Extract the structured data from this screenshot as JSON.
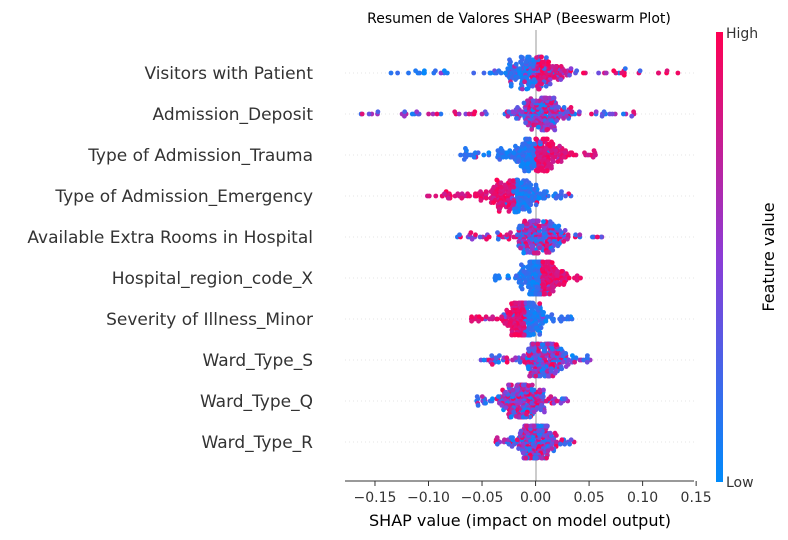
{
  "chart_data": {
    "type": "scatter",
    "subtype": "beeswarm",
    "title": "Resumen de Valores SHAP (Beeswarm Plot)",
    "xlabel": "SHAP value (impact on model output)",
    "ylabel": "",
    "xlim": [
      -0.178,
      0.148
    ],
    "xticks": [
      -0.15,
      -0.1,
      -0.05,
      0.0,
      0.05,
      0.1,
      0.15
    ],
    "xtick_labels": [
      "−0.15",
      "−0.10",
      "−0.05",
      "0.00",
      "0.05",
      "0.10",
      "0.15"
    ],
    "grid": false,
    "colorbar": {
      "label": "Feature value",
      "high_label": "High",
      "low_label": "Low",
      "low_color": "#008bfb",
      "mid_color": "#8c3cd6",
      "high_color": "#ff0052"
    },
    "features": [
      {
        "name": "Visitors with Patient",
        "min": -0.135,
        "max": 0.133,
        "core": [
          -0.045,
          0.045
        ],
        "low_side": "negative",
        "overlap": 0.3
      },
      {
        "name": "Admission_Deposit",
        "min": -0.163,
        "max": 0.092,
        "core": [
          -0.03,
          0.045
        ],
        "low_side": "mixed",
        "overlap": 0.6
      },
      {
        "name": "Type of Admission_Trauma",
        "min": -0.07,
        "max": 0.056,
        "core": [
          -0.035,
          0.035
        ],
        "low_side": "negative",
        "overlap": 0.05
      },
      {
        "name": "Type of Admission_Emergency",
        "min": -0.101,
        "max": 0.033,
        "core": [
          -0.06,
          0.02
        ],
        "low_side": "positive",
        "overlap": 0.05
      },
      {
        "name": "Available Extra Rooms in Hospital",
        "min": -0.073,
        "max": 0.062,
        "core": [
          -0.03,
          0.035
        ],
        "low_side": "mixed",
        "overlap": 0.7
      },
      {
        "name": "Hospital_region_code_X",
        "min": -0.038,
        "max": 0.042,
        "core": [
          -0.02,
          0.03
        ],
        "low_side": "negative",
        "overlap": 0.05
      },
      {
        "name": "Severity of Illness_Minor",
        "min": -0.06,
        "max": 0.034,
        "core": [
          -0.035,
          0.015
        ],
        "low_side": "positive",
        "overlap": 0.05
      },
      {
        "name": "Ward_Type_S",
        "min": -0.051,
        "max": 0.051,
        "core": [
          -0.02,
          0.04
        ],
        "low_side": "mixed",
        "overlap": 0.5
      },
      {
        "name": "Ward_Type_Q",
        "min": -0.055,
        "max": 0.03,
        "core": [
          -0.04,
          0.015
        ],
        "low_side": "mixed",
        "overlap": 0.4
      },
      {
        "name": "Ward_Type_R",
        "min": -0.037,
        "max": 0.036,
        "core": [
          -0.025,
          0.025
        ],
        "low_side": "mixed",
        "overlap": 0.7
      }
    ]
  }
}
